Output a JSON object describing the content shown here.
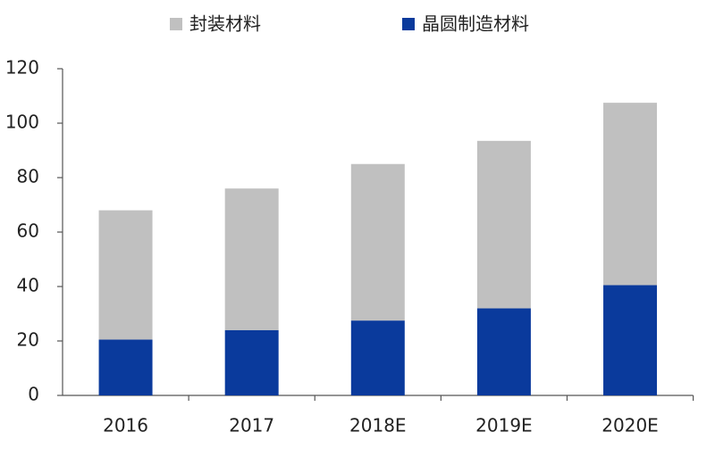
{
  "chart_data": {
    "type": "stacked_bar",
    "categories": [
      "2016",
      "2017",
      "2018E",
      "2019E",
      "2020E"
    ],
    "series": [
      {
        "name": "封装材料",
        "color": "#c0c0c0",
        "values": [
          47.5,
          52,
          57.5,
          61.5,
          67
        ]
      },
      {
        "name": "晶圆制造材料",
        "color": "#0a3a9c",
        "values": [
          20.5,
          24,
          27.5,
          32,
          40.5
        ]
      }
    ],
    "ylim": [
      0,
      120
    ],
    "yticks": [
      0,
      20,
      40,
      60,
      80,
      100,
      120
    ],
    "grid": false
  }
}
